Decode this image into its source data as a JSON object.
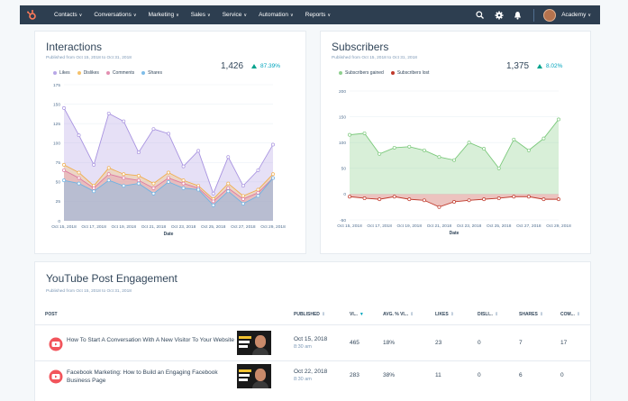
{
  "nav": {
    "items": [
      "Contacts",
      "Conversations",
      "Marketing",
      "Sales",
      "Service",
      "Automation",
      "Reports"
    ],
    "account": "Academy",
    "icons": [
      "sprocket-logo-icon",
      "search-icon",
      "settings-icon",
      "bell-icon"
    ]
  },
  "interactions": {
    "title": "Interactions",
    "subtitle": "Published from Oct 15, 2018 to Oct 31, 2018",
    "total": "1,426",
    "change": "87.39%",
    "legend": [
      "Likes",
      "Dislikes",
      "Comments",
      "Shares"
    ]
  },
  "subscribers": {
    "title": "Subscribers",
    "subtitle": "Published from Oct 15, 2018 to Oct 31, 2018",
    "total": "1,375",
    "change": "8.02%",
    "legend": [
      "Subscribers gained",
      "Subscribers lost"
    ]
  },
  "youtube": {
    "title": "YouTube Post Engagement",
    "subtitle": "Published from Oct 15, 2018 to Oct 31, 2018",
    "columns": [
      "POST",
      "PUBLISHED",
      "VI...",
      "AVG. % VI...",
      "LIKES",
      "DISLI...",
      "SHARES",
      "COM..."
    ],
    "rows": [
      {
        "title": "How To Start A Conversation With A New Visitor To Your Website",
        "date": "Oct 15, 2018",
        "time": "8:30 am",
        "views": "465",
        "avg": "18%",
        "likes": "23",
        "dislikes": "0",
        "shares": "7",
        "comments": "17"
      },
      {
        "title": "Facebook Marketing: How to Build an Engaging Facebook Business Page",
        "date": "Oct 22, 2018",
        "time": "8:30 am",
        "views": "283",
        "avg": "38%",
        "likes": "11",
        "dislikes": "0",
        "shares": "6",
        "comments": "0"
      }
    ]
  },
  "colors": {
    "likes": "#b8a7e6",
    "dislikes": "#f5c26b",
    "comments": "#e28fb0",
    "shares": "#7fbde8",
    "gained": "#8fd08f",
    "lost": "#c0392b",
    "nav": "#2d3e50",
    "up": "#00a38d"
  },
  "chart_data": [
    {
      "type": "area",
      "title": "Interactions",
      "xlabel": "Date",
      "ylabel": "",
      "ylim": [
        0,
        175
      ],
      "yticks": [
        0,
        25,
        50,
        75,
        100,
        125,
        150,
        175
      ],
      "x": [
        "Oct 15, 2018",
        "Oct 16, 2018",
        "Oct 17, 2018",
        "Oct 18, 2018",
        "Oct 19, 2018",
        "Oct 20, 2018",
        "Oct 21, 2018",
        "Oct 22, 2018",
        "Oct 23, 2018",
        "Oct 24, 2018",
        "Oct 25, 2018",
        "Oct 26, 2018",
        "Oct 27, 2018",
        "Oct 28, 2018",
        "Oct 29, 2018"
      ],
      "x_ticklabels": [
        "Oct 15, 2018",
        "Oct 17, 2018",
        "Oct 19, 2018",
        "Oct 21, 2018",
        "Oct 23, 2018",
        "Oct 25, 2018",
        "Oct 27, 2018",
        "Oct 29, 2018"
      ],
      "series": [
        {
          "name": "Likes",
          "values": [
            145,
            110,
            72,
            138,
            128,
            88,
            118,
            112,
            70,
            90,
            35,
            82,
            45,
            65,
            98
          ]
        },
        {
          "name": "Dislikes",
          "values": [
            72,
            62,
            45,
            68,
            60,
            58,
            48,
            62,
            52,
            45,
            28,
            48,
            32,
            40,
            60
          ]
        },
        {
          "name": "Comments",
          "values": [
            65,
            55,
            42,
            60,
            55,
            52,
            42,
            55,
            48,
            42,
            25,
            42,
            28,
            36,
            55
          ]
        },
        {
          "name": "Shares",
          "values": [
            52,
            48,
            38,
            52,
            45,
            48,
            35,
            50,
            42,
            40,
            20,
            38,
            22,
            32,
            55
          ]
        }
      ]
    },
    {
      "type": "area",
      "title": "Subscribers",
      "xlabel": "Date",
      "ylabel": "",
      "ylim": [
        -50,
        200
      ],
      "yticks": [
        -50,
        0,
        50,
        100,
        150,
        200
      ],
      "x": [
        "Oct 15, 2018",
        "Oct 16, 2018",
        "Oct 17, 2018",
        "Oct 18, 2018",
        "Oct 19, 2018",
        "Oct 20, 2018",
        "Oct 21, 2018",
        "Oct 22, 2018",
        "Oct 23, 2018",
        "Oct 24, 2018",
        "Oct 25, 2018",
        "Oct 26, 2018",
        "Oct 27, 2018",
        "Oct 28, 2018",
        "Oct 29, 2018"
      ],
      "x_ticklabels": [
        "Oct 15, 2018",
        "Oct 17, 2018",
        "Oct 19, 2018",
        "Oct 21, 2018",
        "Oct 23, 2018",
        "Oct 25, 2018",
        "Oct 27, 2018",
        "Oct 29, 2018"
      ],
      "series": [
        {
          "name": "Subscribers gained",
          "values": [
            115,
            118,
            78,
            90,
            92,
            85,
            72,
            66,
            100,
            88,
            50,
            106,
            85,
            108,
            145
          ]
        },
        {
          "name": "Subscribers lost",
          "values": [
            -5,
            -8,
            -10,
            -5,
            -10,
            -12,
            -25,
            -15,
            -12,
            -10,
            -8,
            -5,
            -5,
            -10,
            -10
          ]
        }
      ]
    }
  ]
}
